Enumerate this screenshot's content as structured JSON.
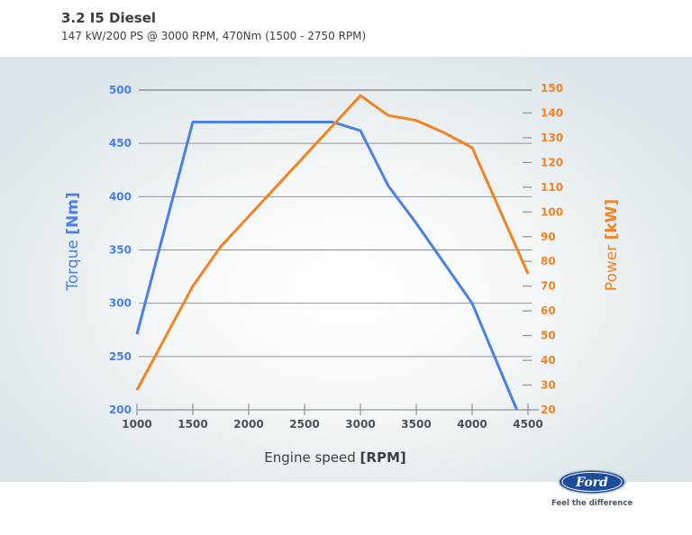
{
  "header": {
    "title": "3.2 I5 Diesel",
    "subtitle": "147 kW/200 PS @ 3000 RPM, 470Nm (1500 - 2750 RPM)"
  },
  "brand": {
    "logo_text": "Ford",
    "tagline": "Feel the difference"
  },
  "chart_data": {
    "type": "line",
    "title": "",
    "xlabel": "Engine speed",
    "xlabel_unit": "[RPM]",
    "ylabel_left": "Torque",
    "ylabel_left_unit": "[Nm]",
    "ylabel_right": "Power",
    "ylabel_right_unit": "[kW]",
    "xlim": [
      1000,
      4500
    ],
    "ylim_left": [
      200,
      500
    ],
    "ylim_right": [
      20,
      150
    ],
    "x_ticks": [
      "1000",
      "1500",
      "2000",
      "2500",
      "3000",
      "3500",
      "4000",
      "4500"
    ],
    "y_left_ticks": [
      "500",
      "450",
      "400",
      "350",
      "300",
      "250",
      "200"
    ],
    "y_right_ticks": [
      "150",
      "140",
      "130",
      "120",
      "110",
      "100",
      "90",
      "80",
      "70",
      "60",
      "50",
      "40",
      "30",
      "20"
    ],
    "grid": true,
    "colors": {
      "torque": "#4a7fe8",
      "power": "#f58220",
      "grid": "#8c9398"
    },
    "series": [
      {
        "axis": "left",
        "color": "#4a7fe8",
        "points": [
          [
            1000,
            271
          ],
          [
            1500,
            470
          ],
          [
            2750,
            470
          ],
          [
            3000,
            462
          ],
          [
            3250,
            410
          ],
          [
            3500,
            375
          ],
          [
            4000,
            300
          ],
          [
            4400,
            200
          ]
        ]
      },
      {
        "axis": "right",
        "color": "#f58220",
        "points": [
          [
            1000,
            28
          ],
          [
            1500,
            70
          ],
          [
            1750,
            86
          ],
          [
            3000,
            147
          ],
          [
            3250,
            139
          ],
          [
            3500,
            137
          ],
          [
            3750,
            132
          ],
          [
            4000,
            126
          ],
          [
            4500,
            75
          ]
        ]
      }
    ]
  }
}
